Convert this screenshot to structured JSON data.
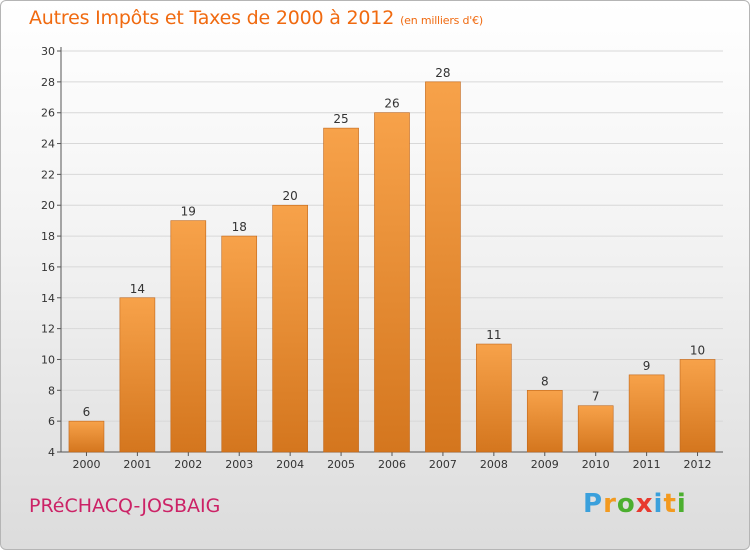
{
  "header": {
    "title": "Autres Impôts et Taxes de 2000 à 2012",
    "unit": "(en milliers d'€)"
  },
  "footer": {
    "location": "PRéCHACQ-JOSBAIG",
    "logo_letters": [
      "P",
      "r",
      "o",
      "x",
      "i",
      "t",
      "i"
    ],
    "logo_colors": [
      "#3aa0dc",
      "#f39a1f",
      "#4caf2f",
      "#e8392e",
      "#3aa0dc",
      "#f39a1f",
      "#4caf2f"
    ]
  },
  "colors": {
    "bar_top": "#f7a24a",
    "bar_bottom": "#d4761e",
    "bar_edge": "#c0661a",
    "grid": "#d8d8d8",
    "axis": "#555555"
  },
  "chart_data": {
    "type": "bar",
    "title": "Autres Impôts et Taxes de 2000 à 2012",
    "subtitle": "(en milliers d'€)",
    "categories": [
      "2000",
      "2001",
      "2002",
      "2003",
      "2004",
      "2005",
      "2006",
      "2007",
      "2008",
      "2009",
      "2010",
      "2011",
      "2012"
    ],
    "values": [
      6,
      14,
      19,
      18,
      20,
      25,
      26,
      28,
      11,
      8,
      7,
      9,
      10
    ],
    "xlabel": "",
    "ylabel": "",
    "ylim": [
      4,
      30
    ],
    "yticks": [
      4,
      6,
      8,
      10,
      12,
      14,
      16,
      18,
      20,
      22,
      24,
      26,
      28,
      30
    ],
    "grid": true,
    "legend": "none"
  }
}
